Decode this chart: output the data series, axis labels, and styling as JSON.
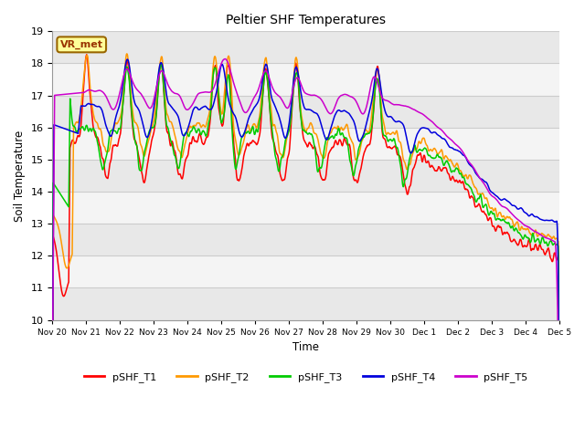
{
  "title": "Peltier SHF Temperatures",
  "xlabel": "Time",
  "ylabel": "Soil Temperature",
  "ylim": [
    10.0,
    19.0
  ],
  "yticks": [
    10.0,
    11.0,
    12.0,
    13.0,
    14.0,
    15.0,
    16.0,
    17.0,
    18.0,
    19.0
  ],
  "xtick_labels": [
    "Nov 20",
    "Nov 21",
    "Nov 22",
    "Nov 23",
    "Nov 24",
    "Nov 25",
    "Nov 26",
    "Nov 27",
    "Nov 28",
    "Nov 29",
    "Nov 30",
    "Dec 1",
    "Dec 2",
    "Dec 3",
    "Dec 4",
    "Dec 5"
  ],
  "colors": {
    "pSHF_T1": "#ff0000",
    "pSHF_T2": "#ff9900",
    "pSHF_T3": "#00cc00",
    "pSHF_T4": "#0000dd",
    "pSHF_T5": "#cc00cc"
  },
  "legend_label": "VR_met",
  "bg_color": "#ffffff",
  "annotation_box_color": "#ffff99",
  "annotation_text_color": "#993300",
  "band_colors": [
    "#e8e8e8",
    "#f4f4f4"
  ]
}
